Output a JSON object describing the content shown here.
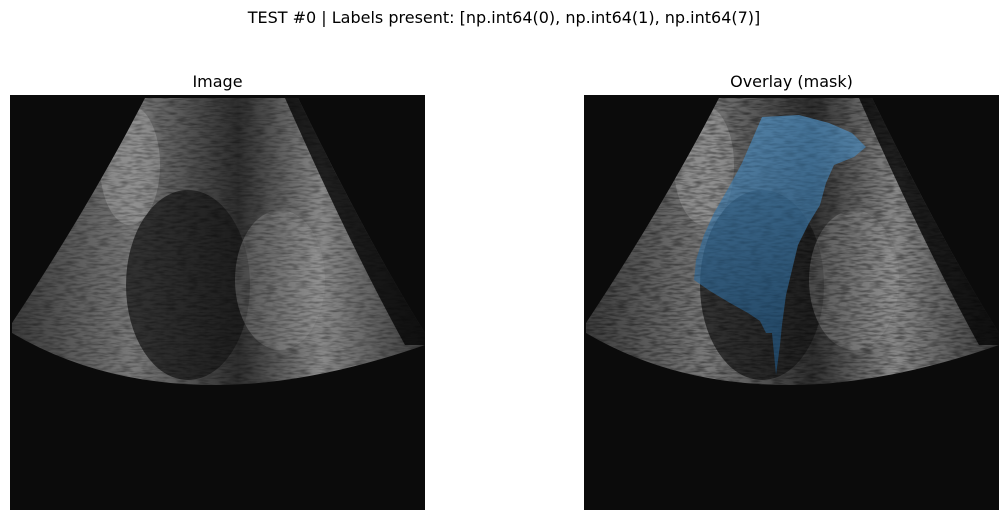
{
  "figure": {
    "suptitle": "TEST #0 | Labels present: [np.int64(0), np.int64(1), np.int64(7)]"
  },
  "panels": [
    {
      "title": "Image",
      "content": "grayscale ultrasound sector scan"
    },
    {
      "title": "Overlay (mask)",
      "content": "ultrasound sector scan with semi-transparent blue segmentation mask",
      "mask_color": "#3a7fb8"
    }
  ],
  "colors": {
    "background": "#ffffff",
    "image_background": "#0b0b0b",
    "mask": "#3a7fb8"
  }
}
